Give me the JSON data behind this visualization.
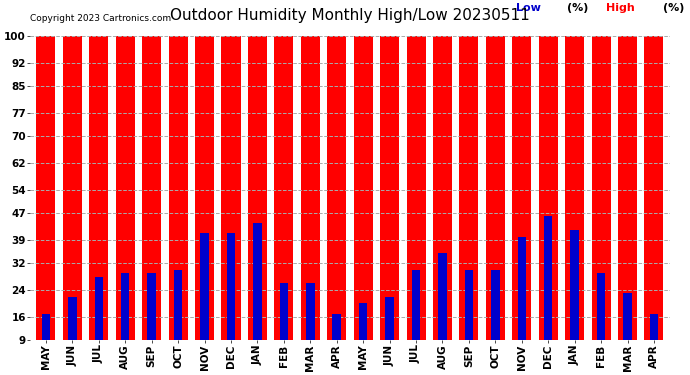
{
  "title": "Outdoor Humidity Monthly High/Low 20230511",
  "copyright": "Copyright 2023 Cartronics.com",
  "legend_low": "Low",
  "legend_high": "High",
  "legend_pct": "(%)",
  "months": [
    "MAY",
    "JUN",
    "JUL",
    "AUG",
    "SEP",
    "OCT",
    "NOV",
    "DEC",
    "JAN",
    "FEB",
    "MAR",
    "APR",
    "MAY",
    "JUN",
    "JUL",
    "AUG",
    "SEP",
    "OCT",
    "NOV",
    "DEC",
    "JAN",
    "FEB",
    "MAR",
    "APR"
  ],
  "high_values": [
    100,
    100,
    100,
    100,
    100,
    100,
    100,
    100,
    100,
    100,
    100,
    100,
    100,
    100,
    100,
    100,
    100,
    100,
    100,
    100,
    100,
    100,
    100,
    100
  ],
  "low_values": [
    17,
    22,
    28,
    29,
    29,
    30,
    41,
    41,
    44,
    26,
    26,
    17,
    20,
    22,
    30,
    35,
    30,
    30,
    40,
    46,
    42,
    29,
    23,
    17
  ],
  "high_color": "#ff0000",
  "low_color": "#0000cc",
  "bg_color": "#ffffff",
  "grid_color": "#aaaaaa",
  "yticks": [
    9,
    16,
    24,
    32,
    39,
    47,
    54,
    62,
    70,
    77,
    85,
    92,
    100
  ],
  "ylim": [
    9,
    100
  ],
  "title_fontsize": 11,
  "tick_fontsize": 7.5,
  "legend_fontsize": 8
}
